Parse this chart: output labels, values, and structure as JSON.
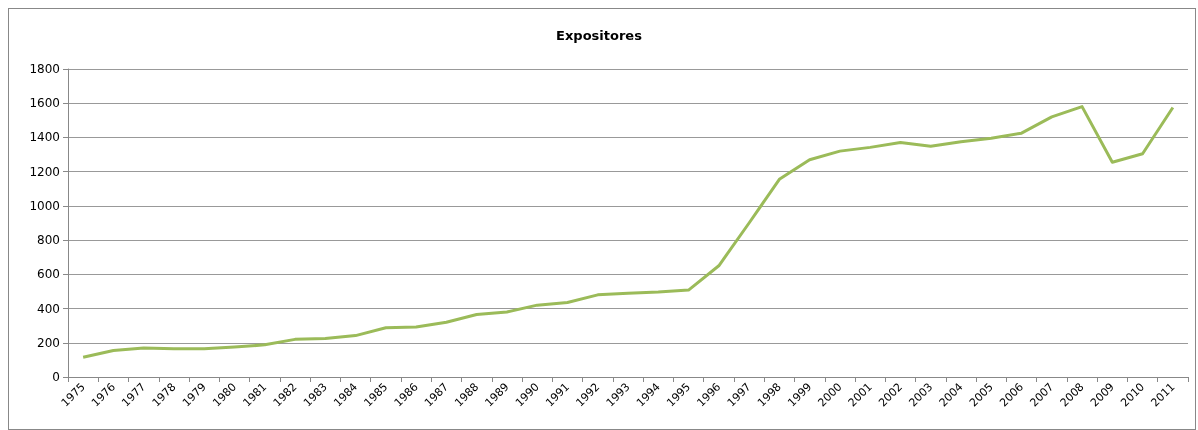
{
  "chart_data": {
    "type": "line",
    "title": "Expositores",
    "categories": [
      "1975",
      "1976",
      "1977",
      "1978",
      "1979",
      "1980",
      "1981",
      "1982",
      "1983",
      "1984",
      "1985",
      "1986",
      "1987",
      "1988",
      "1989",
      "1990",
      "1991",
      "1992",
      "1993",
      "1994",
      "1995",
      "1996",
      "1997",
      "1998",
      "1999",
      "2000",
      "2001",
      "2002",
      "2003",
      "2004",
      "2005",
      "2006",
      "2007",
      "2008",
      "2009",
      "2010",
      "2011"
    ],
    "series": [
      {
        "color": "#9bbb59",
        "values": [
          115,
          155,
          170,
          165,
          165,
          175,
          188,
          220,
          225,
          242,
          288,
          292,
          320,
          365,
          380,
          420,
          435,
          480,
          490,
          497,
          508,
          650,
          900,
          1155,
          1270,
          1320,
          1342,
          1370,
          1348,
          1375,
          1395,
          1425,
          1520,
          1580,
          1255,
          1305,
          1575
        ]
      }
    ],
    "ylim": [
      0,
      1800
    ],
    "yticks": [
      0,
      200,
      400,
      600,
      800,
      1000,
      1200,
      1400,
      1600,
      1800
    ],
    "grid": "y",
    "marker": "none",
    "line_style": "solid"
  }
}
